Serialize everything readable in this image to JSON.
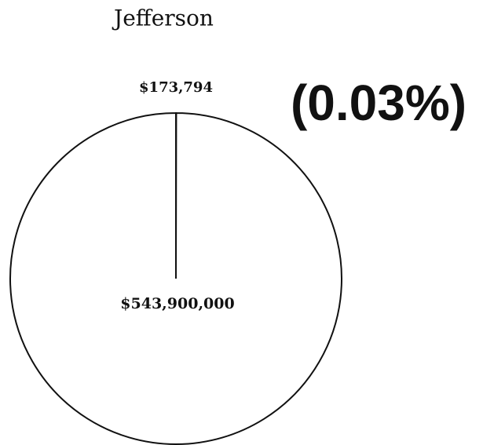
{
  "chart_data": {
    "type": "pie",
    "title": "Jefferson",
    "categories": [
      null,
      null
    ],
    "values": [
      173794,
      543900000
    ],
    "value_labels": [
      "$173,794",
      "$543,900,000"
    ],
    "annotation": "(0.03%)"
  }
}
